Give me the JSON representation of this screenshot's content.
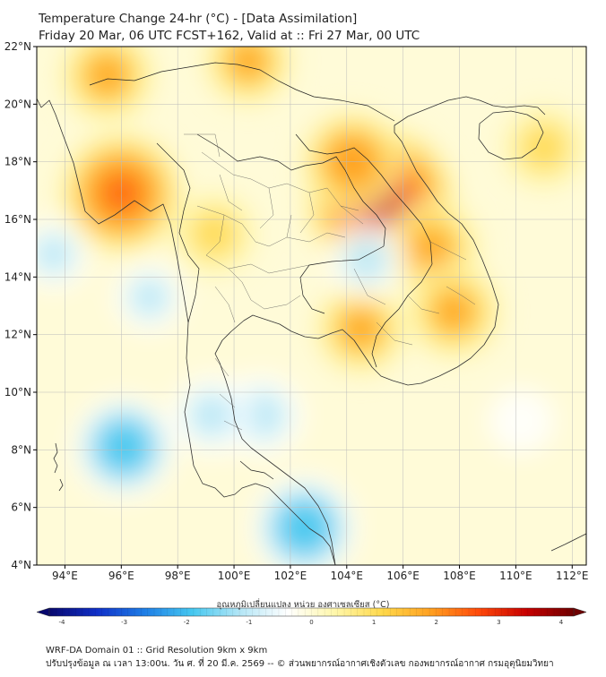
{
  "title": {
    "line1": "Temperature Change 24-hr (°C) - [Data Assimilation]",
    "line2": "Friday 20 Mar, 06 UTC FCST+162, Valid at :: Fri 27 Mar, 00 UTC"
  },
  "axes": {
    "lat_labels": [
      "22°N",
      "20°N",
      "18°N",
      "16°N",
      "14°N",
      "12°N",
      "10°N",
      "8°N",
      "6°N",
      "4°N"
    ],
    "lon_labels": [
      "94°E",
      "96°E",
      "98°E",
      "100°E",
      "102°E",
      "104°E",
      "106°E",
      "108°E",
      "110°E",
      "112°E"
    ],
    "lat_range": [
      4,
      22
    ],
    "lon_range": [
      93,
      112.5
    ]
  },
  "colorbar": {
    "label": "อุณหภูมิเปลี่ยนแปลง หน่วย องศาเซลเซียส (°C)",
    "ticks": [
      "-4",
      "-3",
      "-2",
      "-1",
      "0",
      "1",
      "2",
      "3",
      "4"
    ],
    "range": [
      -4,
      4
    ],
    "colors": [
      "#08086e",
      "#1030c8",
      "#1e7ee6",
      "#46c8f0",
      "#b4e6f6",
      "#ffffff",
      "#fff7aa",
      "#ffd84a",
      "#ffa020",
      "#ff4a0a",
      "#c80000",
      "#6e0000"
    ]
  },
  "footer": {
    "line1": "WRF-DA Domain 01 :: Grid Resolution 9km x 9km",
    "line2": "ปรับปรุงข้อมูล ณ เวลา 13:00น. วัน ศ. ที่ 20 มี.ค. 2569 -- © ส่วนพยากรณ์อากาศเชิงตัวเลข กองพยากรณ์อากาศ กรมอุตุนิยมวิทยา"
  },
  "field": {
    "hot_spots": [
      {
        "lon": 105.2,
        "lat": 16.6,
        "value": 3.2,
        "name": "central-laos"
      },
      {
        "lon": 96.0,
        "lat": 16.9,
        "value": 2.3,
        "name": "southern-myanmar"
      },
      {
        "lon": 95.5,
        "lat": 21.0,
        "value": 1.4,
        "name": "upper-myanmar"
      },
      {
        "lon": 104.2,
        "lat": 18.0,
        "value": 1.6,
        "name": "northern-laos"
      },
      {
        "lon": 107.0,
        "lat": 15.0,
        "value": 1.5,
        "name": "southern-laos"
      },
      {
        "lon": 104.5,
        "lat": 12.2,
        "value": 1.3,
        "name": "cambodia"
      },
      {
        "lon": 107.8,
        "lat": 12.8,
        "value": 1.4,
        "name": "central-highlands"
      },
      {
        "lon": 99.3,
        "lat": 15.5,
        "value": 1.0,
        "name": "western-thailand"
      },
      {
        "lon": 111.0,
        "lat": 18.5,
        "value": 1.0,
        "name": "hainan-west"
      },
      {
        "lon": 100.5,
        "lat": 21.5,
        "value": 1.2,
        "name": "north-laos-border"
      }
    ],
    "cold_spots": [
      {
        "lon": 96.1,
        "lat": 8.1,
        "value": -1.6,
        "name": "andaman-sea"
      },
      {
        "lon": 102.5,
        "lat": 5.3,
        "value": -1.7,
        "name": "gulf-south"
      },
      {
        "lon": 101.0,
        "lat": 9.2,
        "value": -1.0,
        "name": "gulf-of-thailand"
      },
      {
        "lon": 99.2,
        "lat": 9.2,
        "value": -0.9,
        "name": "peninsula-west"
      },
      {
        "lon": 97.0,
        "lat": 13.3,
        "value": -0.6,
        "name": "myanmar-coast"
      },
      {
        "lon": 104.7,
        "lat": 14.6,
        "value": -0.8,
        "name": "tonle-sap"
      },
      {
        "lon": 110.2,
        "lat": 9.0,
        "value": -0.5,
        "name": "south-china-sea"
      },
      {
        "lon": 93.6,
        "lat": 14.8,
        "value": -0.6,
        "name": "bay-of-bengal"
      }
    ]
  }
}
